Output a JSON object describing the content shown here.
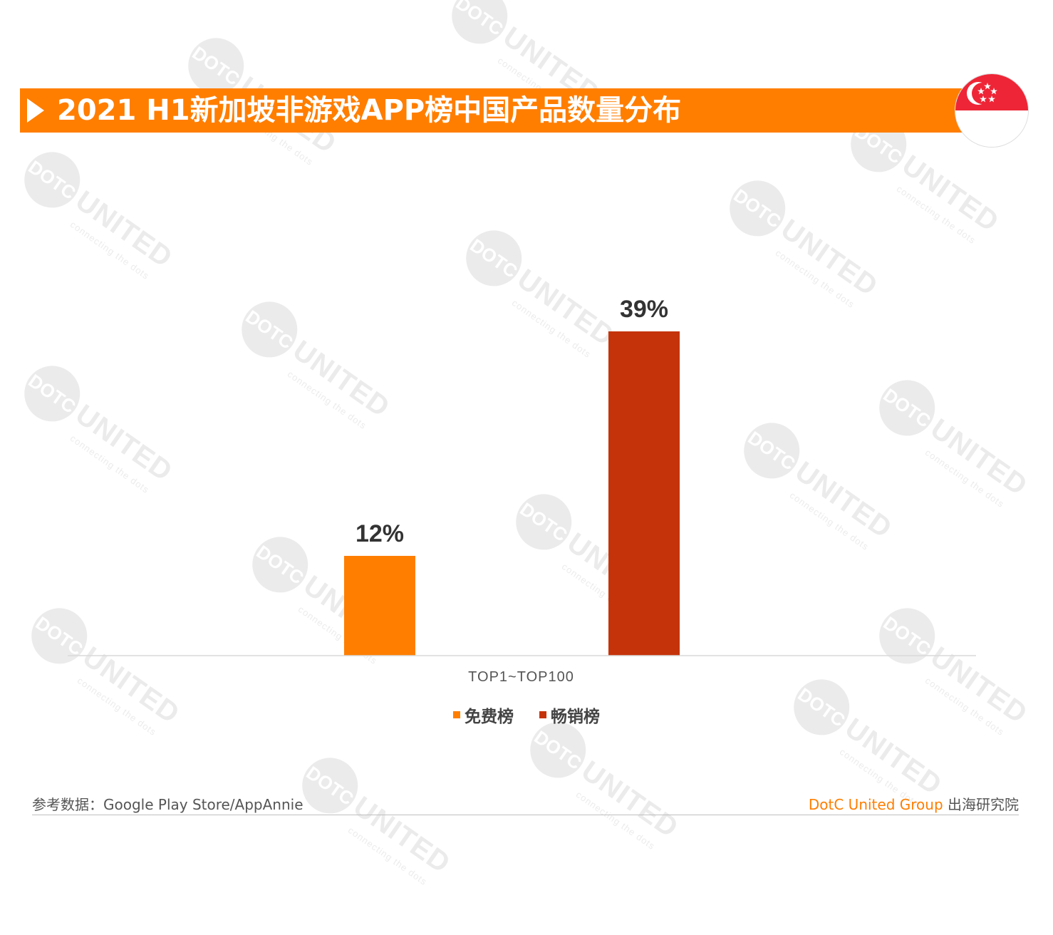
{
  "title": "2021 H1新加坡非游戏APP榜中国产品数量分布",
  "watermark": {
    "circle_text": "DOTC",
    "text": "UNITED",
    "sub": "connecting the dots"
  },
  "chart_data": {
    "type": "bar",
    "categories": [
      "TOP1~TOP100"
    ],
    "series": [
      {
        "name": "免费榜",
        "values": [
          12
        ],
        "labels": [
          "12%"
        ],
        "color": "#ff7e00"
      },
      {
        "name": "畅销榜",
        "values": [
          39
        ],
        "labels": [
          "39%"
        ],
        "color": "#c5330a"
      }
    ],
    "ylim": [
      0,
      45
    ],
    "grid": false,
    "legend_placement": "bottom"
  },
  "footer": {
    "source": "参考数据：Google Play Store/AppAnnie",
    "brand": "DotC United Group",
    "brand_suffix": "出海研究院"
  },
  "colors": {
    "accent": "#ff7e00",
    "dark_red": "#c5330a",
    "flag_red": "#ee2536"
  }
}
